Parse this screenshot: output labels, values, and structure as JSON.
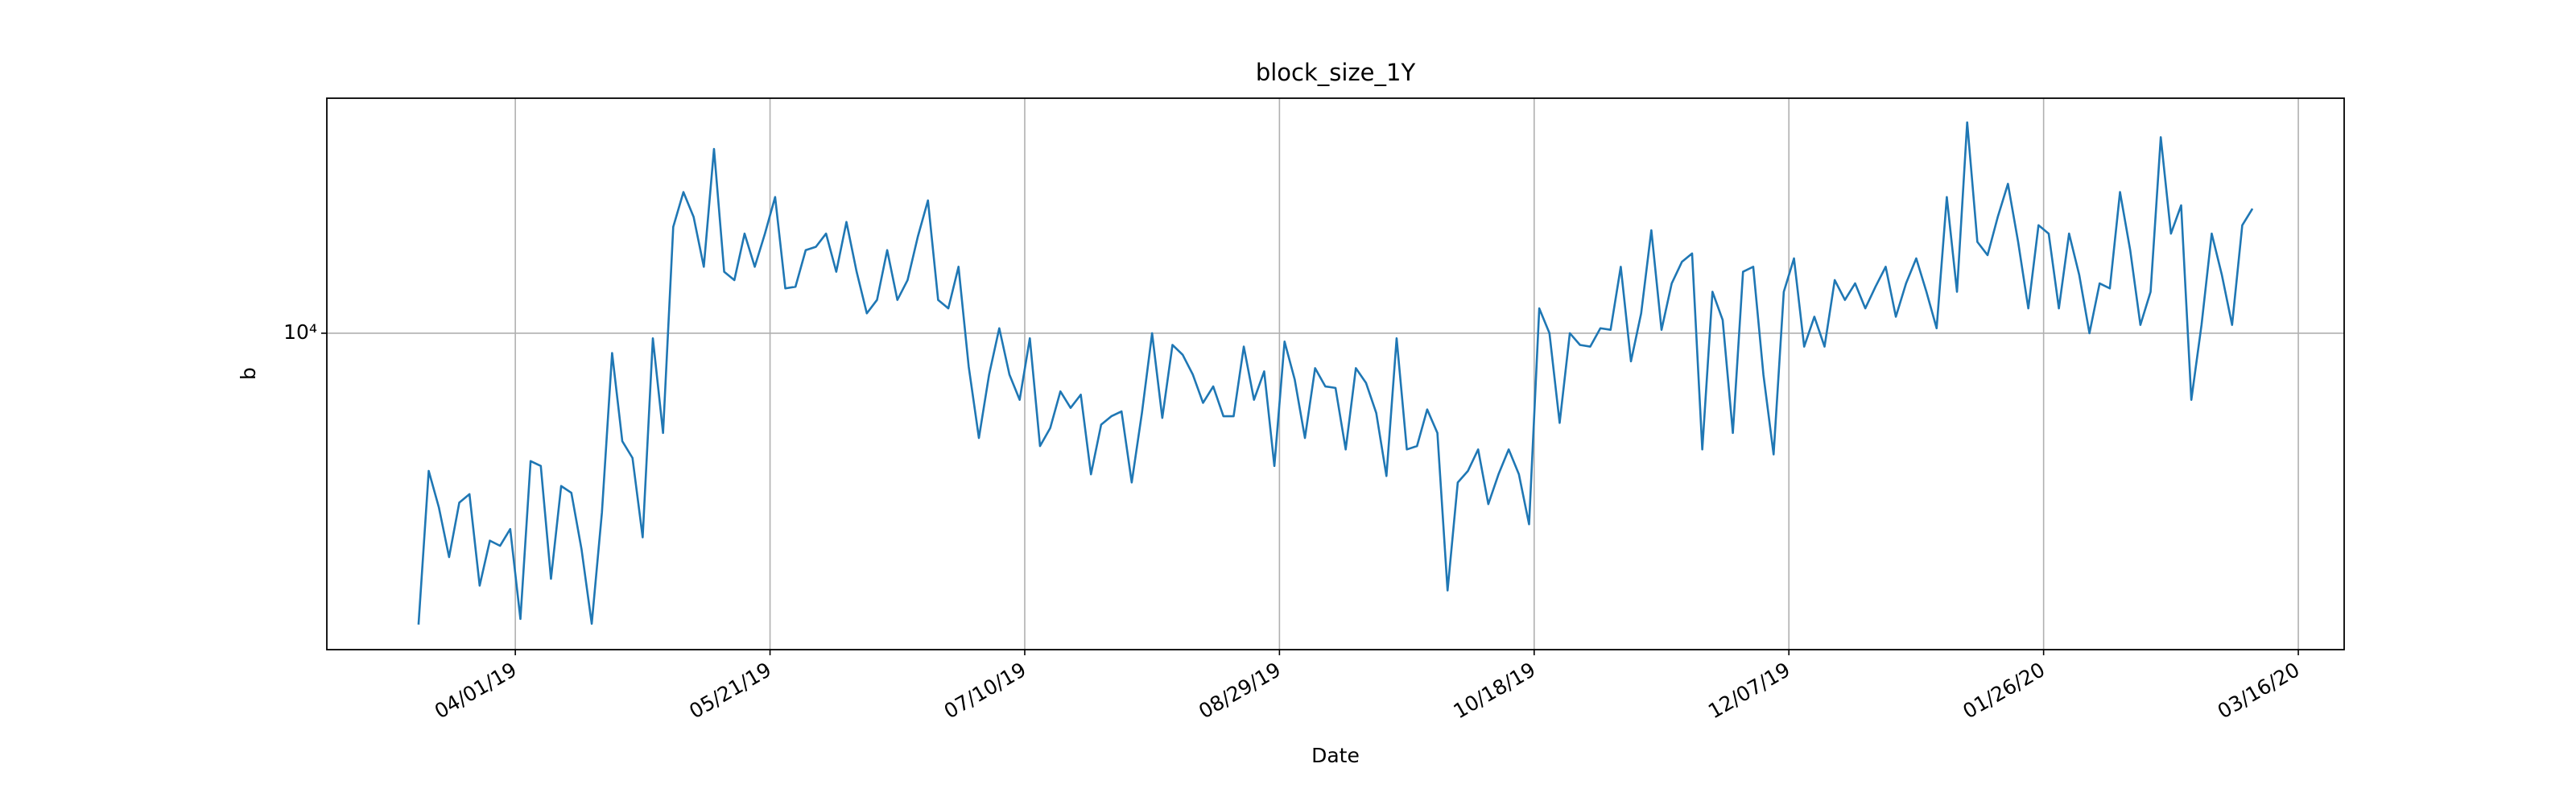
{
  "chart_data": {
    "type": "line",
    "title": "block_size_1Y",
    "x_label": "Date",
    "y_label": "b",
    "log_y": true,
    "grid": true,
    "color": "#1f77b4",
    "xlim": [
      "2019-02-23",
      "2020-03-25"
    ],
    "xticks": [
      {
        "value": "2019-04-01",
        "label": "04/01/19"
      },
      {
        "value": "2019-05-21",
        "label": "05/21/19"
      },
      {
        "value": "2019-07-10",
        "label": "07/10/19"
      },
      {
        "value": "2019-08-29",
        "label": "08/29/19"
      },
      {
        "value": "2019-10-18",
        "label": "10/18/19"
      },
      {
        "value": "2019-12-07",
        "label": "12/07/19"
      },
      {
        "value": "2020-01-26",
        "label": "01/26/20"
      },
      {
        "value": "2020-03-16",
        "label": "03/16/20"
      }
    ],
    "ylim": [
      2500,
      28000
    ],
    "yticks": [
      {
        "value": 10000,
        "label": "10⁴"
      }
    ],
    "x": [
      "2019-03-13",
      "2019-03-15",
      "2019-03-17",
      "2019-03-19",
      "2019-03-21",
      "2019-03-23",
      "2019-03-25",
      "2019-03-27",
      "2019-03-29",
      "2019-03-31",
      "2019-04-02",
      "2019-04-04",
      "2019-04-06",
      "2019-04-08",
      "2019-04-10",
      "2019-04-12",
      "2019-04-14",
      "2019-04-16",
      "2019-04-18",
      "2019-04-20",
      "2019-04-22",
      "2019-04-24",
      "2019-04-26",
      "2019-04-28",
      "2019-04-30",
      "2019-05-02",
      "2019-05-04",
      "2019-05-06",
      "2019-05-08",
      "2019-05-10",
      "2019-05-12",
      "2019-05-14",
      "2019-05-16",
      "2019-05-18",
      "2019-05-20",
      "2019-05-22",
      "2019-05-24",
      "2019-05-26",
      "2019-05-28",
      "2019-05-30",
      "2019-06-01",
      "2019-06-03",
      "2019-06-05",
      "2019-06-07",
      "2019-06-09",
      "2019-06-11",
      "2019-06-13",
      "2019-06-15",
      "2019-06-17",
      "2019-06-19",
      "2019-06-21",
      "2019-06-23",
      "2019-06-25",
      "2019-06-27",
      "2019-06-29",
      "2019-07-01",
      "2019-07-03",
      "2019-07-05",
      "2019-07-07",
      "2019-07-09",
      "2019-07-11",
      "2019-07-13",
      "2019-07-15",
      "2019-07-17",
      "2019-07-19",
      "2019-07-21",
      "2019-07-23",
      "2019-07-25",
      "2019-07-27",
      "2019-07-29",
      "2019-07-31",
      "2019-08-02",
      "2019-08-04",
      "2019-08-06",
      "2019-08-08",
      "2019-08-10",
      "2019-08-12",
      "2019-08-14",
      "2019-08-16",
      "2019-08-18",
      "2019-08-20",
      "2019-08-22",
      "2019-08-24",
      "2019-08-26",
      "2019-08-28",
      "2019-08-30",
      "2019-09-01",
      "2019-09-03",
      "2019-09-05",
      "2019-09-07",
      "2019-09-09",
      "2019-09-11",
      "2019-09-13",
      "2019-09-15",
      "2019-09-17",
      "2019-09-19",
      "2019-09-21",
      "2019-09-23",
      "2019-09-25",
      "2019-09-27",
      "2019-09-29",
      "2019-10-01",
      "2019-10-03",
      "2019-10-05",
      "2019-10-07",
      "2019-10-09",
      "2019-10-11",
      "2019-10-13",
      "2019-10-15",
      "2019-10-17",
      "2019-10-19",
      "2019-10-21",
      "2019-10-23",
      "2019-10-25",
      "2019-10-27",
      "2019-10-29",
      "2019-10-31",
      "2019-11-02",
      "2019-11-04",
      "2019-11-06",
      "2019-11-08",
      "2019-11-10",
      "2019-11-12",
      "2019-11-14",
      "2019-11-16",
      "2019-11-18",
      "2019-11-20",
      "2019-11-22",
      "2019-11-24",
      "2019-11-26",
      "2019-11-28",
      "2019-11-30",
      "2019-12-02",
      "2019-12-04",
      "2019-12-06",
      "2019-12-08",
      "2019-12-10",
      "2019-12-12",
      "2019-12-14",
      "2019-12-16",
      "2019-12-18",
      "2019-12-20",
      "2019-12-22",
      "2019-12-24",
      "2019-12-26",
      "2019-12-28",
      "2019-12-30",
      "2020-01-01",
      "2020-01-03",
      "2020-01-05",
      "2020-01-07",
      "2020-01-09",
      "2020-01-11",
      "2020-01-13",
      "2020-01-15",
      "2020-01-17",
      "2020-01-19",
      "2020-01-21",
      "2020-01-23",
      "2020-01-25",
      "2020-01-27",
      "2020-01-29",
      "2020-01-31",
      "2020-02-02",
      "2020-02-04",
      "2020-02-06",
      "2020-02-08",
      "2020-02-10",
      "2020-02-12",
      "2020-02-14",
      "2020-02-16",
      "2020-02-18",
      "2020-02-20",
      "2020-02-22",
      "2020-02-24",
      "2020-02-26",
      "2020-02-28",
      "2020-03-01",
      "2020-03-03",
      "2020-03-05",
      "2020-03-07"
    ],
    "values": [
      2790,
      5470,
      4660,
      3750,
      4760,
      4940,
      3310,
      4030,
      3940,
      4240,
      2860,
      5710,
      5590,
      3410,
      5120,
      4970,
      3880,
      2800,
      4560,
      9170,
      6230,
      5790,
      4090,
      9780,
      6460,
      15930,
      18560,
      16640,
      13380,
      22420,
      13090,
      12620,
      15470,
      13380,
      15470,
      18160,
      12170,
      12260,
      14390,
      14600,
      15470,
      13090,
      16280,
      13090,
      10910,
      11570,
      14390,
      11570,
      12620,
      15250,
      17890,
      11570,
      11150,
      13380,
      8640,
      6320,
      8340,
      10220,
      8340,
      7470,
      9780,
      6100,
      6600,
      7750,
      7210,
      7640,
      5390,
      6700,
      6950,
      7100,
      5200,
      7050,
      10000,
      6900,
      9500,
      9100,
      8340,
      7370,
      7920,
      6950,
      6950,
      9430,
      7470,
      8460,
      5590,
      9640,
      8160,
      6320,
      8580,
      7920,
      7870,
      6010,
      8580,
      8040,
      7050,
      5350,
      9780,
      6010,
      6100,
      7160,
      6460,
      3240,
      5200,
      5470,
      6010,
      4730,
      5390,
      6010,
      5390,
      4330,
      11150,
      10000,
      6750,
      10000,
      9500,
      9430,
      10220,
      10150,
      13380,
      8840,
      10910,
      15700,
      10150,
      12440,
      13670,
      14180,
      6010,
      11990,
      10600,
      6460,
      13090,
      13380,
      8340,
      5880,
      11990,
      13880,
      9430,
      10750,
      9430,
      12620,
      11570,
      12440,
      11150,
      12260,
      13380,
      10750,
      12440,
      13880,
      11990,
      10220,
      18160,
      11990,
      25190,
      14920,
      14080,
      16640,
      19240,
      14920,
      11150,
      16050,
      15470,
      11150,
      15470,
      12900,
      10000,
      12440,
      12170,
      18560,
      14390,
      10370,
      11990,
      23600,
      15470,
      17510,
      7470,
      10370,
      15470,
      12900,
      10370,
      16050,
      17260
    ]
  }
}
